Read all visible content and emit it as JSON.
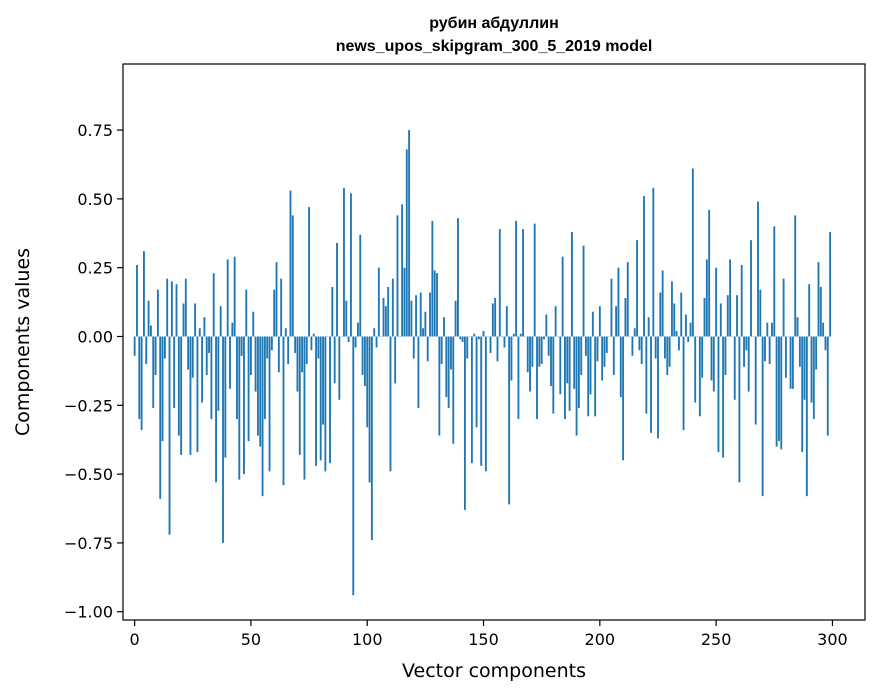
{
  "chart_data": {
    "type": "bar",
    "title_line1": "рубин абдуллин",
    "title_line2": "news_upos_skipgram_300_5_2019 model",
    "xlabel": "Vector components",
    "ylabel": "Components values",
    "xlim": [
      -5,
      314
    ],
    "ylim": [
      -1.03,
      0.99
    ],
    "grid": false,
    "bar_color": "#1f77b4",
    "xticks": [
      0,
      50,
      100,
      150,
      200,
      250,
      300
    ],
    "xtick_labels": [
      "0",
      "50",
      "100",
      "150",
      "200",
      "250",
      "300"
    ],
    "yticks": [
      -1.0,
      -0.75,
      -0.5,
      -0.25,
      0.0,
      0.25,
      0.5,
      0.75
    ],
    "ytick_labels": [
      "−1.00",
      "−0.75",
      "−0.50",
      "−0.25",
      "0.00",
      "0.25",
      "0.50",
      "0.75"
    ],
    "values": [
      -0.07,
      0.26,
      -0.3,
      -0.34,
      0.31,
      -0.1,
      0.13,
      0.04,
      -0.26,
      -0.14,
      0.17,
      -0.59,
      -0.38,
      -0.08,
      0.21,
      -0.72,
      0.2,
      -0.26,
      0.19,
      -0.36,
      -0.43,
      0.12,
      0.21,
      -0.12,
      -0.43,
      -0.15,
      0.12,
      -0.42,
      0.03,
      -0.24,
      0.07,
      -0.14,
      -0.06,
      -0.3,
      0.23,
      -0.53,
      -0.27,
      0.11,
      -0.75,
      -0.44,
      0.28,
      -0.19,
      0.05,
      0.29,
      -0.3,
      -0.52,
      -0.07,
      -0.5,
      0.17,
      -0.38,
      -0.14,
      0.09,
      -0.2,
      -0.36,
      -0.4,
      -0.58,
      -0.3,
      -0.08,
      -0.49,
      -0.05,
      0.17,
      0.27,
      -0.13,
      0.21,
      -0.54,
      0.03,
      -0.1,
      0.53,
      0.44,
      -0.06,
      -0.2,
      -0.43,
      -0.13,
      -0.52,
      -0.1,
      0.47,
      -0.05,
      0.01,
      -0.47,
      -0.08,
      -0.45,
      -0.32,
      -0.49,
      0.0,
      -0.46,
      0.18,
      -0.17,
      0.34,
      -0.23,
      0.0,
      0.54,
      0.13,
      -0.02,
      0.52,
      -0.94,
      -0.04,
      0.05,
      0.37,
      -0.14,
      -0.18,
      -0.33,
      -0.53,
      -0.74,
      0.03,
      -0.04,
      0.25,
      0.0,
      0.14,
      0.11,
      0.18,
      -0.49,
      0.21,
      -0.17,
      0.44,
      0.0,
      0.48,
      0.25,
      0.68,
      0.75,
      0.13,
      -0.08,
      0.15,
      -0.26,
      0.16,
      0.03,
      0.09,
      -0.09,
      0.16,
      0.42,
      0.24,
      0.23,
      -0.36,
      -0.1,
      0.07,
      -0.22,
      -0.26,
      -0.12,
      -0.39,
      0.13,
      0.43,
      -0.01,
      -0.02,
      -0.63,
      -0.08,
      0.0,
      -0.46,
      0.01,
      -0.33,
      -0.01,
      -0.47,
      0.02,
      -0.49,
      0.0,
      -0.06,
      0.12,
      0.14,
      -0.09,
      0.39,
      0.0,
      -0.04,
      0.11,
      -0.61,
      -0.16,
      0.01,
      0.42,
      -0.3,
      0.01,
      0.39,
      0.0,
      -0.13,
      -0.2,
      -0.11,
      0.41,
      -0.3,
      -0.11,
      -0.1,
      -0.01,
      0.08,
      -0.07,
      -0.18,
      -0.28,
      0.11,
      0.0,
      -0.21,
      0.29,
      -0.3,
      -0.17,
      -0.27,
      0.38,
      -0.19,
      -0.36,
      -0.26,
      -0.14,
      0.33,
      -0.07,
      -0.29,
      -0.21,
      0.09,
      -0.29,
      -0.09,
      0.11,
      -0.16,
      -0.11,
      -0.06,
      0.0,
      0.21,
      -0.14,
      0.11,
      0.25,
      -0.22,
      -0.45,
      0.14,
      0.27,
      0.0,
      -0.07,
      0.03,
      0.35,
      -0.05,
      -0.1,
      0.51,
      -0.28,
      0.07,
      -0.35,
      0.54,
      -0.08,
      -0.37,
      0.16,
      0.24,
      -0.08,
      -0.14,
      -0.11,
      0.2,
      0.12,
      0.02,
      -0.05,
      0.16,
      -0.34,
      0.08,
      -0.02,
      0.05,
      0.61,
      -0.24,
      0.0,
      -0.29,
      -0.15,
      0.14,
      0.28,
      0.46,
      -0.16,
      -0.2,
      0.25,
      -0.42,
      0.12,
      -0.44,
      -0.14,
      0.15,
      0.28,
      0.0,
      -0.23,
      0.15,
      -0.53,
      0.26,
      -0.11,
      -0.05,
      -0.2,
      0.35,
      0.0,
      -0.32,
      0.49,
      0.17,
      -0.58,
      -0.09,
      0.05,
      -0.1,
      0.05,
      0.4,
      -0.4,
      -0.38,
      -0.41,
      0.21,
      -0.15,
      0.0,
      -0.19,
      -0.19,
      0.44,
      0.07,
      -0.11,
      -0.42,
      -0.23,
      -0.58,
      0.19,
      -0.24,
      -0.3,
      -0.12,
      0.27,
      0.18,
      0.05,
      -0.05,
      -0.36,
      0.38
    ]
  }
}
